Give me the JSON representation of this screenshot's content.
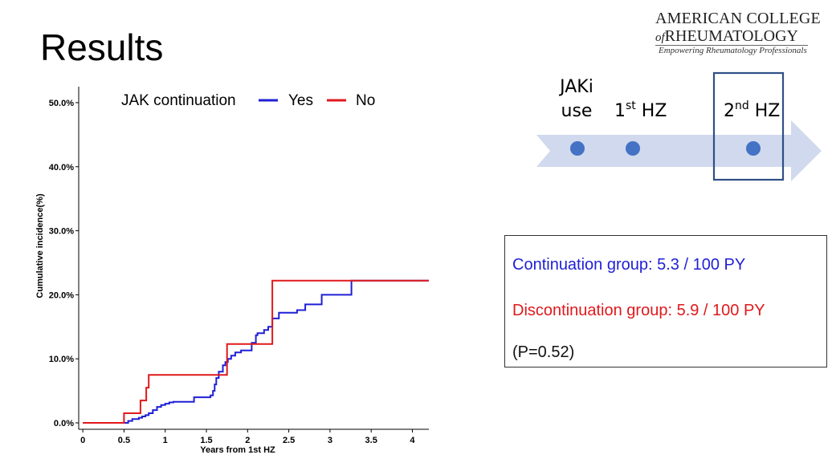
{
  "slide": {
    "title": "Results"
  },
  "logo": {
    "line1": "AMERICAN COLLEGE",
    "line2_of": "of",
    "line2_main": "RHEUMATOLOGY",
    "tagline": "Empowering Rheumatology Professionals"
  },
  "chart_data": {
    "type": "line",
    "step": true,
    "title": "",
    "xlabel": "Years from 1st HZ",
    "ylabel": "Cumulative incidence(%)",
    "xlim": [
      -0.05,
      4.2
    ],
    "ylim": [
      -0.01,
      0.525
    ],
    "x_ticks": [
      0,
      0.5,
      1,
      1.5,
      2,
      2.5,
      3,
      3.5,
      4
    ],
    "x_tick_labels": [
      "0",
      "0.5",
      "1",
      "1.5",
      "2",
      "2.5",
      "3",
      "3.5",
      "4"
    ],
    "y_ticks": [
      0,
      0.1,
      0.2,
      0.3,
      0.4,
      0.5
    ],
    "y_tick_labels": [
      "0.0%",
      "10.0%",
      "20.0%",
      "30.0%",
      "40.0%",
      "50.0%"
    ],
    "grid": false,
    "legend": {
      "title": "JAK continuation",
      "position": "top"
    },
    "series": [
      {
        "name": "Yes",
        "color": "#1f1fd6",
        "points": [
          [
            0,
            0
          ],
          [
            0.5,
            0
          ],
          [
            0.55,
            0.003
          ],
          [
            0.6,
            0.006
          ],
          [
            0.68,
            0.008
          ],
          [
            0.72,
            0.01
          ],
          [
            0.76,
            0.012
          ],
          [
            0.8,
            0.015
          ],
          [
            0.85,
            0.02
          ],
          [
            0.9,
            0.025
          ],
          [
            0.95,
            0.028
          ],
          [
            1.0,
            0.03
          ],
          [
            1.05,
            0.032
          ],
          [
            1.1,
            0.033
          ],
          [
            1.3,
            0.033
          ],
          [
            1.35,
            0.04
          ],
          [
            1.55,
            0.043
          ],
          [
            1.58,
            0.05
          ],
          [
            1.6,
            0.06
          ],
          [
            1.62,
            0.07
          ],
          [
            1.65,
            0.08
          ],
          [
            1.7,
            0.09
          ],
          [
            1.73,
            0.095
          ],
          [
            1.76,
            0.1
          ],
          [
            1.8,
            0.105
          ],
          [
            1.85,
            0.11
          ],
          [
            1.92,
            0.113
          ],
          [
            2.05,
            0.125
          ],
          [
            2.1,
            0.137
          ],
          [
            2.12,
            0.14
          ],
          [
            2.2,
            0.145
          ],
          [
            2.25,
            0.15
          ],
          [
            2.3,
            0.163
          ],
          [
            2.38,
            0.172
          ],
          [
            2.6,
            0.176
          ],
          [
            2.7,
            0.185
          ],
          [
            2.9,
            0.2
          ],
          [
            3.26,
            0.222
          ],
          [
            4.2,
            0.222
          ]
        ]
      },
      {
        "name": "No",
        "color": "#e0191c",
        "points": [
          [
            0,
            0
          ],
          [
            0.5,
            0
          ],
          [
            0.5,
            0.015
          ],
          [
            0.7,
            0.015
          ],
          [
            0.7,
            0.035
          ],
          [
            0.77,
            0.035
          ],
          [
            0.77,
            0.055
          ],
          [
            0.8,
            0.055
          ],
          [
            0.8,
            0.075
          ],
          [
            1.75,
            0.075
          ],
          [
            1.75,
            0.123
          ],
          [
            2.3,
            0.123
          ],
          [
            2.3,
            0.222
          ],
          [
            4.2,
            0.222
          ]
        ]
      }
    ]
  },
  "timeline": {
    "event1_line1": "JAKi",
    "event1_line2": "use",
    "event2_base": "1",
    "event2_sup": "st",
    "event2_suffix": " HZ",
    "event3_base": "2",
    "event3_sup": "nd",
    "event3_suffix": " HZ",
    "arrow_color": "#d1d9ee",
    "dot_color": "#4472c4",
    "box_color": "#2f4f86"
  },
  "stats": {
    "continuation": "Continuation group: 5.3 / 100 PY",
    "discontinuation": "Discontinuation group: 5.9 / 100 PY",
    "p_value": "(P=0.52)"
  }
}
